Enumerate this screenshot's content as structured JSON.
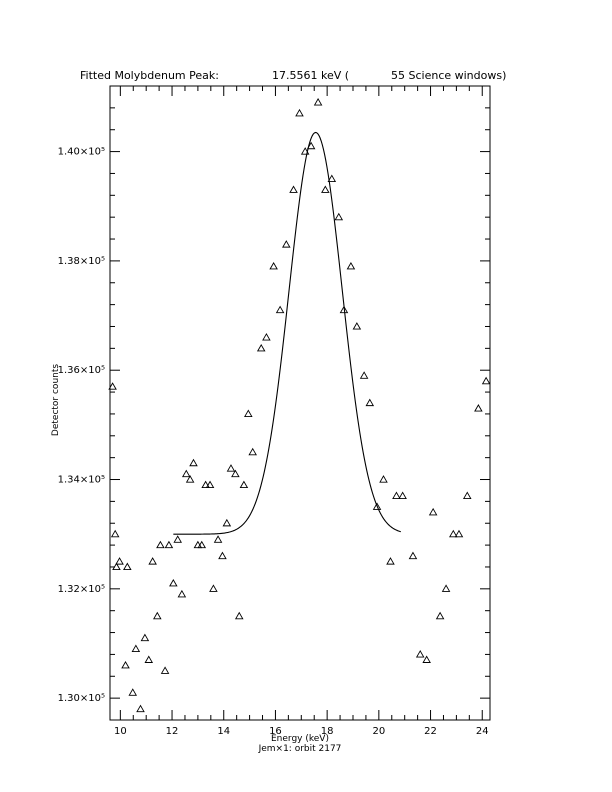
{
  "chart_data": {
    "type": "scatter",
    "title": {
      "label": "Fitted Molybdenum Peak:",
      "energy": "17.5561 keV (",
      "windows": "55 Science windows)"
    },
    "xlabel": "Energy (keV)",
    "ylabel": "Detector counts",
    "subtitle": "Jem×1: orbit 2177",
    "xlim": [
      9.6,
      24.3
    ],
    "ylim": [
      129600,
      141200
    ],
    "xticks": [
      {
        "value": 10,
        "label": "10"
      },
      {
        "value": 12,
        "label": "12"
      },
      {
        "value": 14,
        "label": "14"
      },
      {
        "value": 16,
        "label": "16"
      },
      {
        "value": 18,
        "label": "18"
      },
      {
        "value": 20,
        "label": "20"
      },
      {
        "value": 22,
        "label": "22"
      },
      {
        "value": 24,
        "label": "24"
      }
    ],
    "yticks": [
      {
        "value": 130000,
        "label": "1.30×10⁵"
      },
      {
        "value": 132000,
        "label": "1.32×10⁵"
      },
      {
        "value": 134000,
        "label": "1.34×10⁵"
      },
      {
        "value": 136000,
        "label": "1.36×10⁵"
      },
      {
        "value": 138000,
        "label": "1.38×10⁵"
      },
      {
        "value": 140000,
        "label": "1.40×10⁵"
      }
    ],
    "series": [
      {
        "marker": "triangle",
        "points": [
          [
            9.7,
            135700
          ],
          [
            9.8,
            133000
          ],
          [
            9.85,
            132400
          ],
          [
            9.97,
            132500
          ],
          [
            10.2,
            130600
          ],
          [
            10.27,
            132400
          ],
          [
            10.48,
            130100
          ],
          [
            10.6,
            130900
          ],
          [
            10.78,
            129800
          ],
          [
            10.95,
            131100
          ],
          [
            11.1,
            130700
          ],
          [
            11.25,
            132500
          ],
          [
            11.43,
            131500
          ],
          [
            11.55,
            132800
          ],
          [
            11.73,
            130500
          ],
          [
            11.88,
            132800
          ],
          [
            12.05,
            132100
          ],
          [
            12.22,
            132900
          ],
          [
            12.38,
            131900
          ],
          [
            12.55,
            134100
          ],
          [
            12.7,
            134000
          ],
          [
            12.83,
            134300
          ],
          [
            13.0,
            132800
          ],
          [
            13.15,
            132800
          ],
          [
            13.3,
            133900
          ],
          [
            13.47,
            133900
          ],
          [
            13.6,
            132000
          ],
          [
            13.78,
            132900
          ],
          [
            13.95,
            132600
          ],
          [
            14.12,
            133200
          ],
          [
            14.28,
            134200
          ],
          [
            14.45,
            134100
          ],
          [
            14.6,
            131500
          ],
          [
            14.78,
            133900
          ],
          [
            14.95,
            135200
          ],
          [
            15.12,
            134500
          ],
          [
            15.45,
            136400
          ],
          [
            15.65,
            136600
          ],
          [
            15.93,
            137900
          ],
          [
            16.18,
            137100
          ],
          [
            16.42,
            138300
          ],
          [
            16.7,
            139300
          ],
          [
            16.93,
            140700
          ],
          [
            17.15,
            140000
          ],
          [
            17.38,
            140100
          ],
          [
            17.65,
            140900
          ],
          [
            17.93,
            139300
          ],
          [
            18.18,
            139500
          ],
          [
            18.45,
            138800
          ],
          [
            18.65,
            137100
          ],
          [
            18.92,
            137900
          ],
          [
            19.15,
            136800
          ],
          [
            19.43,
            135900
          ],
          [
            19.65,
            135400
          ],
          [
            19.93,
            133500
          ],
          [
            20.18,
            134000
          ],
          [
            20.45,
            132500
          ],
          [
            20.68,
            133700
          ],
          [
            20.92,
            133700
          ],
          [
            21.32,
            132600
          ],
          [
            21.6,
            130800
          ],
          [
            21.85,
            130700
          ],
          [
            22.1,
            133400
          ],
          [
            22.37,
            131500
          ],
          [
            22.6,
            132000
          ],
          [
            22.88,
            133000
          ],
          [
            23.1,
            133000
          ],
          [
            23.42,
            133700
          ],
          [
            23.85,
            135300
          ],
          [
            24.15,
            135800
          ]
        ]
      },
      {
        "marker": "line",
        "fit": {
          "baseline": 133000,
          "amplitude": 7350,
          "center": 17.5561,
          "sigma": 1.03,
          "xrange": [
            12.05,
            20.85
          ]
        }
      }
    ]
  }
}
